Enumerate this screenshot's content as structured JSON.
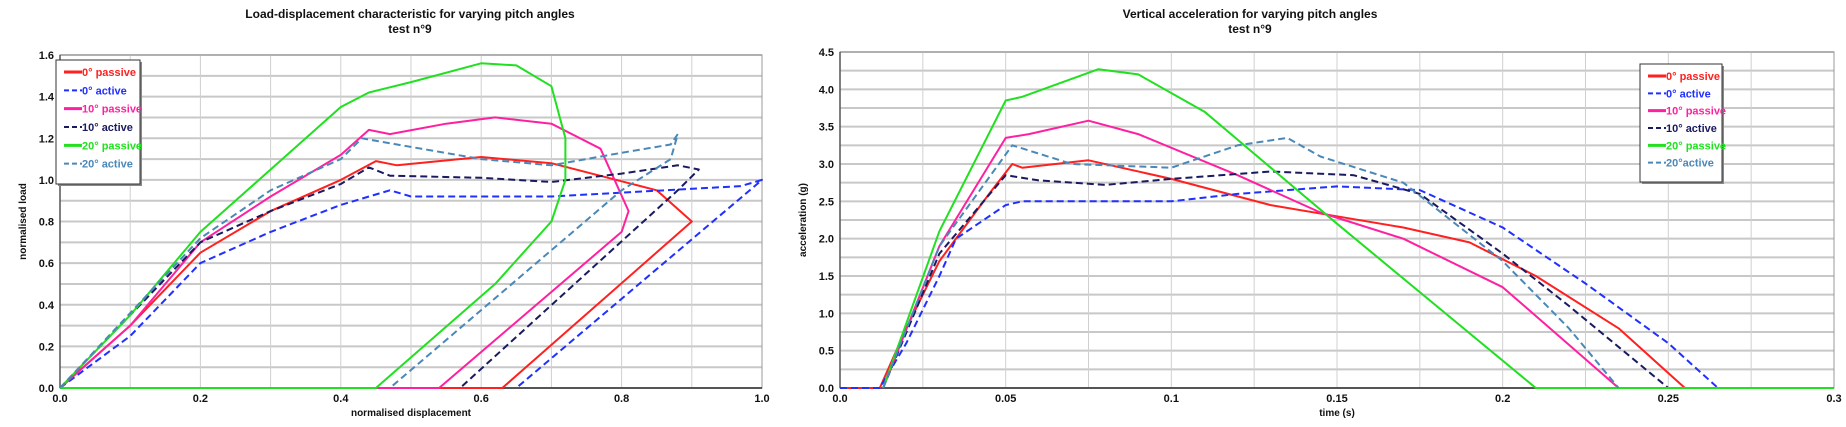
{
  "chart_data": [
    {
      "type": "line",
      "title": "Load-displacement characteristic for varying pitch angles",
      "subtitle": "test n°9",
      "xlabel": "normalised displacement",
      "ylabel": "normalised load",
      "xlim": [
        0,
        1.0
      ],
      "ylim": [
        0,
        1.6
      ],
      "xticks": [
        "0.0",
        "0.2",
        "0.4",
        "0.6",
        "0.8",
        "1.0"
      ],
      "yticks": [
        "0.0",
        "0.2",
        "0.4",
        "0.6",
        "0.8",
        "1.0",
        "1.2",
        "1.4",
        "1.6"
      ],
      "grid": true,
      "legend_position": "top-left",
      "series": [
        {
          "name": "0° passive",
          "color": "#ff2020",
          "dash": false,
          "x": [
            0,
            0.05,
            0.1,
            0.2,
            0.3,
            0.4,
            0.45,
            0.48,
            0.6,
            0.7,
            0.85,
            0.9,
            0.63,
            0.26
          ],
          "y": [
            0,
            0.15,
            0.3,
            0.65,
            0.85,
            1.0,
            1.09,
            1.07,
            1.11,
            1.08,
            0.95,
            0.8,
            0,
            0
          ]
        },
        {
          "name": "0° active",
          "color": "#2030ff",
          "dash": true,
          "x": [
            0,
            0.1,
            0.2,
            0.3,
            0.4,
            0.47,
            0.5,
            0.7,
            0.97,
            1.0,
            0.65
          ],
          "y": [
            0,
            0.25,
            0.6,
            0.75,
            0.88,
            0.95,
            0.92,
            0.92,
            0.97,
            1.0,
            0
          ]
        },
        {
          "name": "10° passive",
          "color": "#ff20a0",
          "dash": false,
          "x": [
            0,
            0.1,
            0.2,
            0.3,
            0.4,
            0.44,
            0.47,
            0.55,
            0.62,
            0.7,
            0.77,
            0.81,
            0.8,
            0.54,
            0.45
          ],
          "y": [
            0,
            0.3,
            0.7,
            0.92,
            1.12,
            1.24,
            1.22,
            1.27,
            1.3,
            1.27,
            1.15,
            0.85,
            0.75,
            0,
            0
          ]
        },
        {
          "name": "10° active",
          "color": "#1a1a60",
          "dash": true,
          "x": [
            0,
            0.2,
            0.3,
            0.4,
            0.44,
            0.47,
            0.6,
            0.7,
            0.8,
            0.88,
            0.91,
            0.88,
            0.57
          ],
          "y": [
            0,
            0.7,
            0.85,
            0.98,
            1.06,
            1.02,
            1.01,
            0.99,
            1.03,
            1.07,
            1.05,
            0.95,
            0
          ]
        },
        {
          "name": "20° passive",
          "color": "#20e020",
          "dash": false,
          "x": [
            0,
            0.1,
            0.2,
            0.3,
            0.4,
            0.44,
            0.5,
            0.6,
            0.65,
            0.7,
            0.72,
            0.72,
            0.7,
            0.62,
            0.45,
            0
          ],
          "y": [
            0,
            0.35,
            0.75,
            1.05,
            1.35,
            1.42,
            1.47,
            1.56,
            1.55,
            1.45,
            1.2,
            1.0,
            0.8,
            0.5,
            0,
            0
          ]
        },
        {
          "name": "20° active",
          "color": "#4a88b8",
          "dash": true,
          "x": [
            0,
            0.2,
            0.3,
            0.4,
            0.43,
            0.48,
            0.6,
            0.7,
            0.8,
            0.87,
            0.88,
            0.87,
            0.8,
            0.47
          ],
          "y": [
            0,
            0.72,
            0.95,
            1.1,
            1.2,
            1.17,
            1.1,
            1.07,
            1.13,
            1.17,
            1.22,
            1.1,
            0.95,
            0
          ]
        }
      ]
    },
    {
      "type": "line",
      "title": "Vertical acceleration for varying pitch angles",
      "subtitle": "test n°9",
      "xlabel": "time (s)",
      "ylabel": "acceleration (g)",
      "xlim": [
        0,
        0.3
      ],
      "ylim": [
        0,
        4.5
      ],
      "xticks": [
        "0.0",
        "0.05",
        "0.1",
        "0.15",
        "0.2",
        "0.25",
        "0.3"
      ],
      "yticks": [
        "0.0",
        "0.5",
        "1.0",
        "1.5",
        "2.0",
        "2.5",
        "3.0",
        "3.5",
        "4.0",
        "4.5"
      ],
      "grid": true,
      "legend_position": "top-right",
      "series": [
        {
          "name": "0° passive",
          "color": "#ff2020",
          "dash": false,
          "x": [
            0,
            0.012,
            0.02,
            0.03,
            0.045,
            0.052,
            0.055,
            0.075,
            0.1,
            0.13,
            0.15,
            0.17,
            0.19,
            0.21,
            0.235,
            0.255
          ],
          "y": [
            0,
            0,
            0.8,
            1.7,
            2.6,
            3.0,
            2.95,
            3.05,
            2.8,
            2.45,
            2.3,
            2.15,
            1.95,
            1.5,
            0.8,
            0
          ]
        },
        {
          "name": "0° active",
          "color": "#2030ff",
          "dash": true,
          "x": [
            0,
            0.012,
            0.02,
            0.03,
            0.035,
            0.05,
            0.055,
            0.1,
            0.12,
            0.15,
            0.175,
            0.2,
            0.225,
            0.25,
            0.265
          ],
          "y": [
            0,
            0,
            0.6,
            1.5,
            2.0,
            2.45,
            2.5,
            2.5,
            2.6,
            2.7,
            2.65,
            2.15,
            1.4,
            0.6,
            0
          ]
        },
        {
          "name": "10° passive",
          "color": "#ff20a0",
          "dash": false,
          "x": [
            0.013,
            0.03,
            0.05,
            0.057,
            0.075,
            0.09,
            0.12,
            0.145,
            0.17,
            0.2,
            0.235
          ],
          "y": [
            0,
            1.9,
            3.35,
            3.4,
            3.58,
            3.4,
            2.85,
            2.35,
            2.0,
            1.35,
            0
          ]
        },
        {
          "name": "10° active",
          "color": "#1a1a60",
          "dash": true,
          "x": [
            0.013,
            0.03,
            0.05,
            0.06,
            0.08,
            0.1,
            0.13,
            0.155,
            0.175,
            0.2,
            0.22,
            0.25
          ],
          "y": [
            0,
            1.8,
            2.85,
            2.78,
            2.72,
            2.8,
            2.9,
            2.85,
            2.6,
            1.8,
            1.1,
            0
          ]
        },
        {
          "name": "20° passive",
          "color": "#20e020",
          "dash": false,
          "x": [
            0.013,
            0.03,
            0.05,
            0.055,
            0.078,
            0.09,
            0.11,
            0.15,
            0.18,
            0.21,
            0.3
          ],
          "y": [
            0,
            2.1,
            3.85,
            3.9,
            4.27,
            4.2,
            3.7,
            2.2,
            1.1,
            0,
            0
          ]
        },
        {
          "name": "20°active",
          "color": "#4a88b8",
          "dash": true,
          "x": [
            0.013,
            0.03,
            0.052,
            0.07,
            0.1,
            0.12,
            0.135,
            0.145,
            0.17,
            0.2,
            0.22,
            0.235
          ],
          "y": [
            0,
            1.9,
            3.25,
            3.0,
            2.95,
            3.25,
            3.35,
            3.1,
            2.75,
            1.7,
            0.8,
            0
          ]
        }
      ]
    }
  ]
}
